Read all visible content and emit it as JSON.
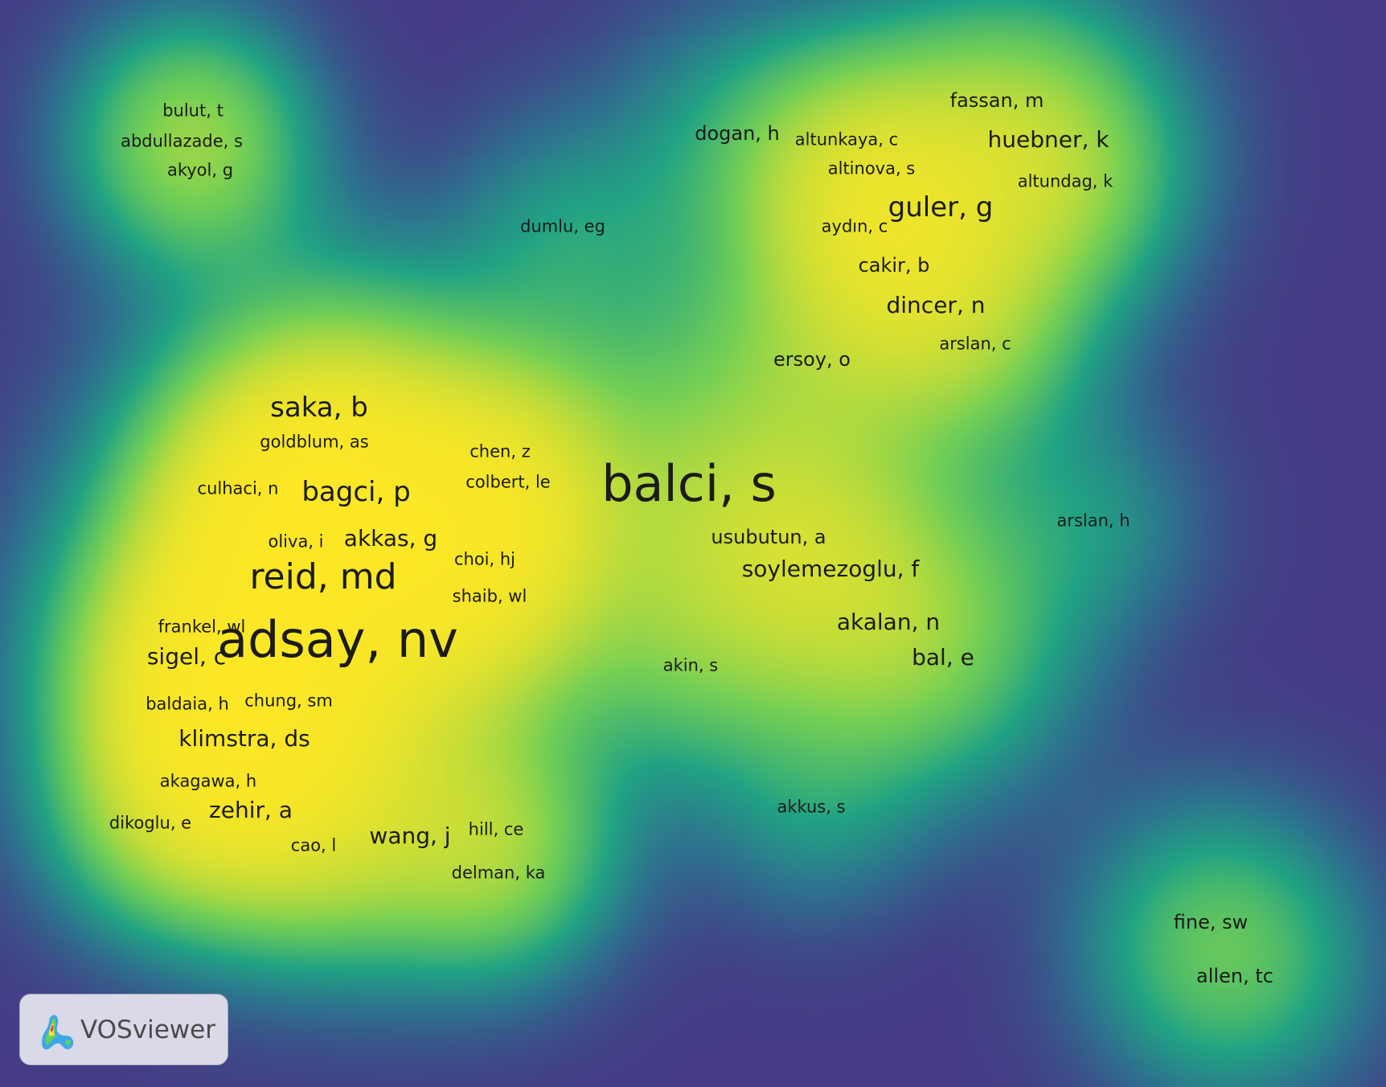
{
  "visualization": {
    "background_color": "#453b85",
    "color_scale": [
      "#453b85",
      "#2f6f8f",
      "#22a384",
      "#73cf56",
      "#fde725"
    ],
    "nodes": [
      {
        "label": "bulut, t",
        "size": 1,
        "density": 0.48
      },
      {
        "label": "abdullazade, s",
        "size": 1,
        "density": 0.55
      },
      {
        "label": "akyol, g",
        "size": 1,
        "density": 0.5
      },
      {
        "label": "dumlu, eg",
        "size": 1,
        "density": 0.4
      },
      {
        "label": "dogan, h",
        "size": 2,
        "density": 0.45
      },
      {
        "label": "altunkaya, c",
        "size": 1,
        "density": 0.45
      },
      {
        "label": "fassan, m",
        "size": 2,
        "density": 0.5
      },
      {
        "label": "huebner, k",
        "size": 3,
        "density": 0.62
      },
      {
        "label": "altinova, s",
        "size": 1,
        "density": 0.5
      },
      {
        "label": "altundag, k",
        "size": 1,
        "density": 0.5
      },
      {
        "label": "aydın, c",
        "size": 1,
        "density": 0.5
      },
      {
        "label": "guler, g",
        "size": 4,
        "density": 0.72
      },
      {
        "label": "cakir, b",
        "size": 2,
        "density": 0.6
      },
      {
        "label": "dincer, n",
        "size": 3,
        "density": 0.58
      },
      {
        "label": "arslan, c",
        "size": 1,
        "density": 0.45
      },
      {
        "label": "ersoy, o",
        "size": 2,
        "density": 0.4
      },
      {
        "label": "saka, b",
        "size": 4,
        "density": 0.62
      },
      {
        "label": "goldblum, as",
        "size": 1,
        "density": 0.65
      },
      {
        "label": "chen, z",
        "size": 1,
        "density": 0.55
      },
      {
        "label": "colbert, le",
        "size": 1,
        "density": 0.55
      },
      {
        "label": "culhaci, n",
        "size": 1,
        "density": 0.6
      },
      {
        "label": "bagci, p",
        "size": 4,
        "density": 0.9
      },
      {
        "label": "balci, s",
        "size": 6,
        "density": 1.0
      },
      {
        "label": "arslan, h",
        "size": 1,
        "density": 0.4
      },
      {
        "label": "oliva, i",
        "size": 1,
        "density": 0.88
      },
      {
        "label": "akkas, g",
        "size": 3,
        "density": 0.9
      },
      {
        "label": "usubutun, a",
        "size": 2,
        "density": 0.6
      },
      {
        "label": "choi, hj",
        "size": 1,
        "density": 0.6
      },
      {
        "label": "soylemezoglu, f",
        "size": 3,
        "density": 0.6
      },
      {
        "label": "reid, md",
        "size": 5,
        "density": 1.0
      },
      {
        "label": "shaib, wl",
        "size": 1,
        "density": 0.6
      },
      {
        "label": "akalan, n",
        "size": 3,
        "density": 0.58
      },
      {
        "label": "frankel, wl",
        "size": 1,
        "density": 0.72
      },
      {
        "label": "adsay, nv",
        "size": 6,
        "density": 1.0
      },
      {
        "label": "sigel, c",
        "size": 3,
        "density": 0.7
      },
      {
        "label": "bal, e",
        "size": 3,
        "density": 0.58
      },
      {
        "label": "akin, s",
        "size": 1,
        "density": 0.42
      },
      {
        "label": "baldaia, h",
        "size": 1,
        "density": 0.65
      },
      {
        "label": "chung, sm",
        "size": 1,
        "density": 0.65
      },
      {
        "label": "klimstra, ds",
        "size": 3,
        "density": 0.72
      },
      {
        "label": "akagawa, h",
        "size": 1,
        "density": 0.68
      },
      {
        "label": "akkus, s",
        "size": 1,
        "density": 0.4
      },
      {
        "label": "zehir, a",
        "size": 3,
        "density": 0.62
      },
      {
        "label": "dikoglu, e",
        "size": 1,
        "density": 0.58
      },
      {
        "label": "wang, j",
        "size": 3,
        "density": 0.55
      },
      {
        "label": "hill, ce",
        "size": 1,
        "density": 0.55
      },
      {
        "label": "cao, l",
        "size": 1,
        "density": 0.55
      },
      {
        "label": "delman, ka",
        "size": 1,
        "density": 0.55
      },
      {
        "label": "fine, sw",
        "size": 2,
        "density": 0.55
      },
      {
        "label": "allen, tc",
        "size": 2,
        "density": 0.58
      }
    ]
  },
  "brand": {
    "name": "VOSviewer",
    "logo_icon": "vosviewer-logo-icon"
  }
}
